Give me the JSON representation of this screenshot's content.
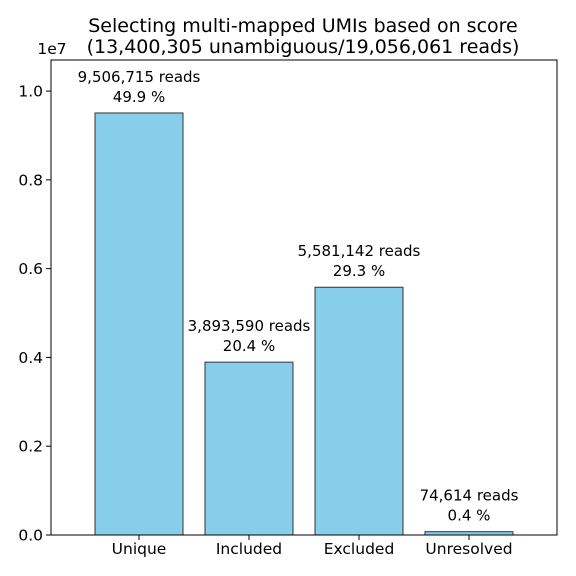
{
  "chart_data": {
    "type": "bar",
    "title_lines": [
      "Selecting multi-mapped UMIs based on score",
      "(13,400,305 unambiguous/19,056,061 reads)"
    ],
    "categories": [
      "Unique",
      "Included",
      "Excluded",
      "Unresolved"
    ],
    "values": [
      9506715,
      3893590,
      5581142,
      74614
    ],
    "bar_labels": [
      [
        "9,506,715 reads",
        "49.9 %"
      ],
      [
        "3,893,590 reads",
        "20.4 %"
      ],
      [
        "5,581,142 reads",
        "29.3 %"
      ],
      [
        "74,614 reads",
        "0.4 %"
      ]
    ],
    "y_ticks": [
      0.0,
      0.2,
      0.4,
      0.6,
      0.8,
      1.0
    ],
    "y_tick_labels": [
      "0.0",
      "0.2",
      "0.4",
      "0.6",
      "0.8",
      "1.0"
    ],
    "y_scale_label": "1e7",
    "y_scale": 10000000,
    "ylim": [
      0,
      10700000
    ],
    "bar_color": "#87ceeb",
    "edge_color": "#333333",
    "grid": false,
    "xlabel": "",
    "ylabel": ""
  }
}
